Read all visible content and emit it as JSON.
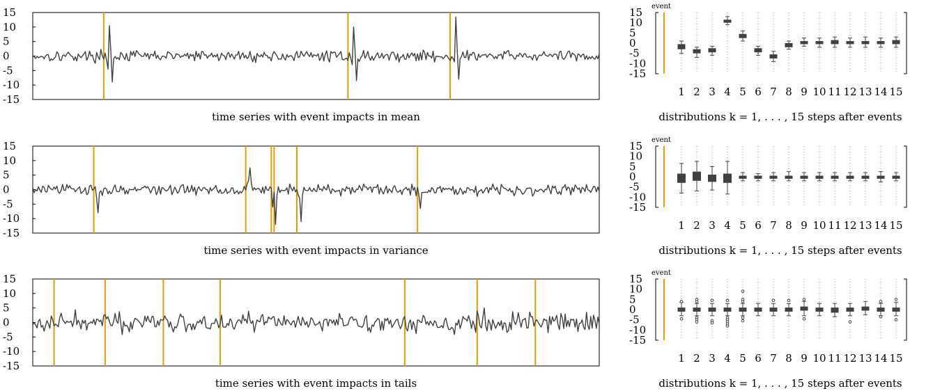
{
  "chart_data": [
    {
      "type": "line",
      "panel": "time-series",
      "caption": "time series with event impacts in mean",
      "ylim": [
        -15,
        15
      ],
      "yticks": [
        "15",
        "10",
        "5",
        "0",
        "-5",
        "-10",
        "-15"
      ],
      "n_points": 400,
      "event_times": [
        50,
        222,
        294
      ],
      "spikes": [
        {
          "t": 53,
          "y": -4.5
        },
        {
          "t": 54,
          "y": 10.5
        },
        {
          "t": 55,
          "y": 1.5
        },
        {
          "t": 56,
          "y": -9
        },
        {
          "t": 57,
          "y": -1
        },
        {
          "t": 225,
          "y": -3
        },
        {
          "t": 226,
          "y": 10
        },
        {
          "t": 227,
          "y": 2
        },
        {
          "t": 228,
          "y": -8.5
        },
        {
          "t": 229,
          "y": -1
        },
        {
          "t": 297,
          "y": -2
        },
        {
          "t": 298,
          "y": 13.5
        },
        {
          "t": 299,
          "y": 2
        },
        {
          "t": 300,
          "y": -8
        },
        {
          "t": 301,
          "y": -1
        }
      ],
      "line_color": "#404040",
      "event_color": "#E69F00"
    },
    {
      "type": "line",
      "panel": "time-series",
      "caption": "time series with event impacts in variance",
      "ylim": [
        -15,
        15
      ],
      "yticks": [
        "15",
        "10",
        "5",
        "0",
        "-5",
        "-10",
        "-15"
      ],
      "n_points": 400,
      "event_times": [
        43,
        150,
        168,
        170,
        186,
        271
      ],
      "spikes": [
        {
          "t": 44,
          "y": 1
        },
        {
          "t": 45,
          "y": -3
        },
        {
          "t": 46,
          "y": -8
        },
        {
          "t": 47,
          "y": -1
        },
        {
          "t": 151,
          "y": 2
        },
        {
          "t": 152,
          "y": 3
        },
        {
          "t": 153,
          "y": 7.5
        },
        {
          "t": 154,
          "y": 2
        },
        {
          "t": 169,
          "y": -6
        },
        {
          "t": 171,
          "y": -12
        },
        {
          "t": 172,
          "y": -2
        },
        {
          "t": 173,
          "y": 1
        },
        {
          "t": 188,
          "y": -3
        },
        {
          "t": 189,
          "y": -11
        },
        {
          "t": 190,
          "y": -2
        },
        {
          "t": 272,
          "y": -2
        },
        {
          "t": 273,
          "y": -6.5
        },
        {
          "t": 274,
          "y": -1
        }
      ],
      "line_color": "#404040",
      "event_color": "#E69F00"
    },
    {
      "type": "line",
      "panel": "time-series",
      "caption": "time series with event impacts in tails",
      "ylim": [
        -15,
        15
      ],
      "yticks": [
        "15",
        "10",
        "5",
        "0",
        "-5",
        "-10",
        "-15"
      ],
      "n_points": 400,
      "event_times": [
        15,
        51,
        92,
        132,
        262,
        313,
        354
      ],
      "spikes": [
        {
          "t": 313,
          "y": 4
        },
        {
          "t": 314,
          "y": 2
        },
        {
          "t": 318,
          "y": 5
        },
        {
          "t": 319,
          "y": -1
        }
      ],
      "line_color": "#404040",
      "event_color": "#E69F00"
    },
    {
      "type": "box",
      "panel": "distributions",
      "caption": "distributions k = 1, . . . , 15 steps after events",
      "event_label": "event",
      "categories": [
        "1",
        "2",
        "3",
        "4",
        "5",
        "6",
        "7",
        "8",
        "9",
        "10",
        "11",
        "12",
        "13",
        "14",
        "15"
      ],
      "ylim": [
        -15,
        15
      ],
      "yticks": [
        "15",
        "10",
        "5",
        "0",
        "-5",
        "-10",
        "-15"
      ],
      "boxes": [
        {
          "q1": -3,
          "median": -2,
          "q3": -0.5,
          "lo": -5,
          "hi": 1,
          "outliers": []
        },
        {
          "q1": -5,
          "median": -4,
          "q3": -3,
          "lo": -7,
          "hi": -2,
          "outliers": []
        },
        {
          "q1": -4.5,
          "median": -3.5,
          "q3": -2.5,
          "lo": -6,
          "hi": -1.5,
          "outliers": []
        },
        {
          "q1": 10,
          "median": 11,
          "q3": 11.5,
          "lo": 9,
          "hi": 13,
          "outliers": []
        },
        {
          "q1": 2.5,
          "median": 3.5,
          "q3": 4.5,
          "lo": 1,
          "hi": 6,
          "outliers": []
        },
        {
          "q1": -4.5,
          "median": -3.5,
          "q3": -2.5,
          "lo": -6,
          "hi": -1.5,
          "outliers": []
        },
        {
          "q1": -7.5,
          "median": -6.5,
          "q3": -5.5,
          "lo": -9,
          "hi": -4,
          "outliers": []
        },
        {
          "q1": -2,
          "median": -1,
          "q3": 0,
          "lo": -3,
          "hi": 1,
          "outliers": []
        },
        {
          "q1": -0.5,
          "median": 0,
          "q3": 1,
          "lo": -1.5,
          "hi": 2.5,
          "outliers": []
        },
        {
          "q1": -0.5,
          "median": 0.5,
          "q3": 1,
          "lo": -2,
          "hi": 2.5,
          "outliers": []
        },
        {
          "q1": -0.5,
          "median": 0.5,
          "q3": 1.5,
          "lo": -2,
          "hi": 3,
          "outliers": []
        },
        {
          "q1": -0.5,
          "median": 0,
          "q3": 1,
          "lo": -2,
          "hi": 2.5,
          "outliers": []
        },
        {
          "q1": -0.5,
          "median": 0.5,
          "q3": 1,
          "lo": -2,
          "hi": 3,
          "outliers": []
        },
        {
          "q1": -0.5,
          "median": 0.5,
          "q3": 1,
          "lo": -2,
          "hi": 2.5,
          "outliers": []
        },
        {
          "q1": -0.5,
          "median": 0.5,
          "q3": 1.5,
          "lo": -2,
          "hi": 3,
          "outliers": []
        }
      ]
    },
    {
      "type": "box",
      "panel": "distributions",
      "caption": "distributions k = 1, . . . , 15 steps after events",
      "event_label": "event",
      "categories": [
        "1",
        "2",
        "3",
        "4",
        "5",
        "6",
        "7",
        "8",
        "9",
        "10",
        "11",
        "12",
        "13",
        "14",
        "15"
      ],
      "ylim": [
        -15,
        15
      ],
      "yticks": [
        "15",
        "10",
        "5",
        "0",
        "-5",
        "-10",
        "-15"
      ],
      "boxes": [
        {
          "q1": -3,
          "median": 0,
          "q3": 1.5,
          "lo": -8,
          "hi": 6.5,
          "outliers": []
        },
        {
          "q1": -2,
          "median": 0.5,
          "q3": 2.5,
          "lo": -7,
          "hi": 7.5,
          "outliers": []
        },
        {
          "q1": -2.5,
          "median": 0,
          "q3": 1,
          "lo": -6.5,
          "hi": 5,
          "outliers": []
        },
        {
          "q1": -3,
          "median": 0,
          "q3": 1.5,
          "lo": -8.5,
          "hi": 7.5,
          "outliers": []
        },
        {
          "q1": -1,
          "median": 0,
          "q3": 0.5,
          "lo": -2,
          "hi": 2,
          "outliers": []
        },
        {
          "q1": -1,
          "median": 0,
          "q3": 0.5,
          "lo": -2,
          "hi": 1.5,
          "outliers": []
        },
        {
          "q1": -1,
          "median": 0,
          "q3": 0.5,
          "lo": -2,
          "hi": 2,
          "outliers": []
        },
        {
          "q1": -1,
          "median": 0,
          "q3": 0.5,
          "lo": -2,
          "hi": 2.5,
          "outliers": []
        },
        {
          "q1": -1,
          "median": 0,
          "q3": 0.5,
          "lo": -2,
          "hi": 2,
          "outliers": []
        },
        {
          "q1": -1,
          "median": 0,
          "q3": 0.5,
          "lo": -2,
          "hi": 2,
          "outliers": []
        },
        {
          "q1": -1,
          "median": 0,
          "q3": 0.5,
          "lo": -2,
          "hi": 2,
          "outliers": []
        },
        {
          "q1": -1,
          "median": 0,
          "q3": 0.5,
          "lo": -2,
          "hi": 2,
          "outliers": []
        },
        {
          "q1": -1,
          "median": 0,
          "q3": 0.5,
          "lo": -2,
          "hi": 2,
          "outliers": []
        },
        {
          "q1": -1,
          "median": 0,
          "q3": 0.5,
          "lo": -2.5,
          "hi": 2.5,
          "outliers": []
        },
        {
          "q1": -1,
          "median": 0,
          "q3": 0.5,
          "lo": -2,
          "hi": 2,
          "outliers": []
        }
      ]
    },
    {
      "type": "box",
      "panel": "distributions",
      "caption": "distributions k = 1, . . . , 15 steps after events",
      "event_label": "event",
      "categories": [
        "1",
        "2",
        "3",
        "4",
        "5",
        "6",
        "7",
        "8",
        "9",
        "10",
        "11",
        "12",
        "13",
        "14",
        "15"
      ],
      "ylim": [
        -15,
        15
      ],
      "yticks": [
        "15",
        "10",
        "5",
        "0",
        "-5",
        "-10",
        "-15"
      ],
      "boxes": [
        {
          "q1": -1,
          "median": 0,
          "q3": 1,
          "lo": -3,
          "hi": 3.5,
          "outliers": [
            -4.5,
            4
          ]
        },
        {
          "q1": -1,
          "median": 0,
          "q3": 1,
          "lo": -3,
          "hi": 3,
          "outliers": [
            -4,
            -5,
            -6,
            4,
            5
          ]
        },
        {
          "q1": -1,
          "median": 0,
          "q3": 1,
          "lo": -3,
          "hi": 3,
          "outliers": [
            -5.5,
            -6.5,
            4.5
          ]
        },
        {
          "q1": -1,
          "median": 0,
          "q3": 1,
          "lo": -3,
          "hi": 3,
          "outliers": [
            -4,
            -5,
            -6,
            -7,
            -8,
            4.5
          ]
        },
        {
          "q1": -1,
          "median": 0,
          "q3": 1,
          "lo": -3,
          "hi": 3,
          "outliers": [
            -4,
            -5.5,
            4,
            5,
            9
          ]
        },
        {
          "q1": -1,
          "median": 0,
          "q3": 1,
          "lo": -3,
          "hi": 3,
          "outliers": []
        },
        {
          "q1": -1,
          "median": 0,
          "q3": 1,
          "lo": -3,
          "hi": 3,
          "outliers": [
            4.5
          ]
        },
        {
          "q1": -1,
          "median": 0,
          "q3": 1,
          "lo": -3,
          "hi": 3,
          "outliers": [
            4.5
          ]
        },
        {
          "q1": -0.5,
          "median": 0,
          "q3": 1.5,
          "lo": -3,
          "hi": 4,
          "outliers": [
            -4.5,
            5
          ]
        },
        {
          "q1": -1,
          "median": 0,
          "q3": 1,
          "lo": -3,
          "hi": 3,
          "outliers": []
        },
        {
          "q1": -1.5,
          "median": -0.5,
          "q3": 1,
          "lo": -3.5,
          "hi": 3,
          "outliers": []
        },
        {
          "q1": -1,
          "median": 0,
          "q3": 1,
          "lo": -3,
          "hi": 3,
          "outliers": [
            -6
          ]
        },
        {
          "q1": -0.5,
          "median": 0.5,
          "q3": 1.5,
          "lo": -2.5,
          "hi": 4,
          "outliers": []
        },
        {
          "q1": -1,
          "median": 0,
          "q3": 1,
          "lo": -3,
          "hi": 3,
          "outliers": [
            -3.5,
            4
          ]
        },
        {
          "q1": -1,
          "median": 0,
          "q3": 1,
          "lo": -3,
          "hi": 3.5,
          "outliers": [
            -5,
            5
          ]
        }
      ]
    }
  ]
}
